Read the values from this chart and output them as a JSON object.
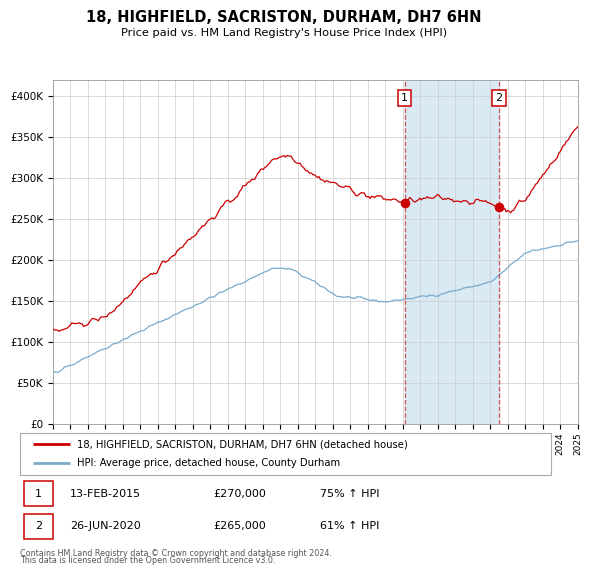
{
  "title": "18, HIGHFIELD, SACRISTON, DURHAM, DH7 6HN",
  "subtitle": "Price paid vs. HM Land Registry's House Price Index (HPI)",
  "hpi_label": "HPI: Average price, detached house, County Durham",
  "property_label": "18, HIGHFIELD, SACRISTON, DURHAM, DH7 6HN (detached house)",
  "sale1_date": "13-FEB-2015",
  "sale1_price": 270000,
  "sale1_pct": "75% ↑ HPI",
  "sale2_date": "26-JUN-2020",
  "sale2_price": 265000,
  "sale2_pct": "61% ↑ HPI",
  "footnote1": "Contains HM Land Registry data © Crown copyright and database right 2024.",
  "footnote2": "This data is licensed under the Open Government Licence v3.0.",
  "red_color": "#cc0000",
  "blue_color": "#7aabcc",
  "highlight_bg": "#daeaf5",
  "bg_color": "#f0f4f8",
  "ylim": [
    0,
    420000
  ],
  "yticks": [
    0,
    50000,
    100000,
    150000,
    200000,
    250000,
    300000,
    350000,
    400000
  ],
  "sale1_year": 2015.1,
  "sale2_year": 2020.5,
  "xmin": 1995,
  "xmax": 2025
}
